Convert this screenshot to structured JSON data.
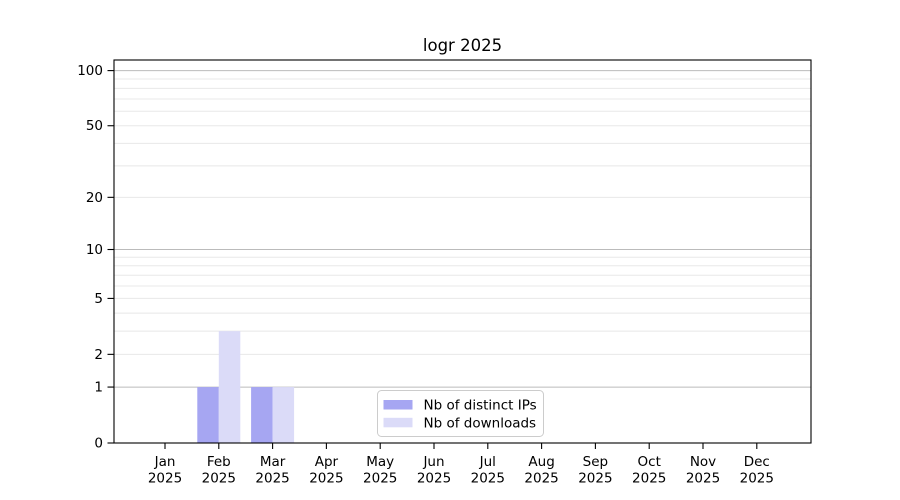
{
  "chart_data": {
    "type": "bar",
    "title": "logr 2025",
    "x": {
      "months": [
        "Jan",
        "Feb",
        "Mar",
        "Apr",
        "May",
        "Jun",
        "Jul",
        "Aug",
        "Sep",
        "Oct",
        "Nov",
        "Dec"
      ],
      "year": "2025"
    },
    "series": [
      {
        "name": "Nb of distinct IPs",
        "color": "#a6a6f2",
        "values": [
          0,
          1,
          1,
          0,
          0,
          0,
          0,
          0,
          0,
          0,
          0,
          0
        ]
      },
      {
        "name": "Nb of downloads",
        "color": "#dbdbf8",
        "values": [
          0,
          3,
          1,
          0,
          0,
          0,
          0,
          0,
          0,
          0,
          0,
          0
        ]
      }
    ],
    "y_axis": {
      "scale": "log1p",
      "tick_labels": [
        "0",
        "1",
        "2",
        "5",
        "10",
        "20",
        "50",
        "100"
      ],
      "tick_values": [
        0,
        1,
        2,
        5,
        10,
        20,
        50,
        100
      ],
      "major_gridlines": [
        1,
        10,
        100
      ],
      "minor_gridlines": [
        2,
        3,
        4,
        5,
        6,
        7,
        8,
        9,
        20,
        30,
        40,
        50,
        60,
        70,
        80,
        90
      ],
      "ylim": [
        0,
        114
      ]
    },
    "legend": {
      "position": "lower-center",
      "entries": [
        "Nb of distinct IPs",
        "Nb of downloads"
      ]
    },
    "grid": true,
    "colors": {
      "background": "#ffffff",
      "axis": "#000000",
      "text": "#000000",
      "major_grid": "#bbbbbb",
      "minor_grid": "#e8e8e8",
      "legend_border": "#cccccc",
      "legend_background": "#ffffff"
    }
  }
}
